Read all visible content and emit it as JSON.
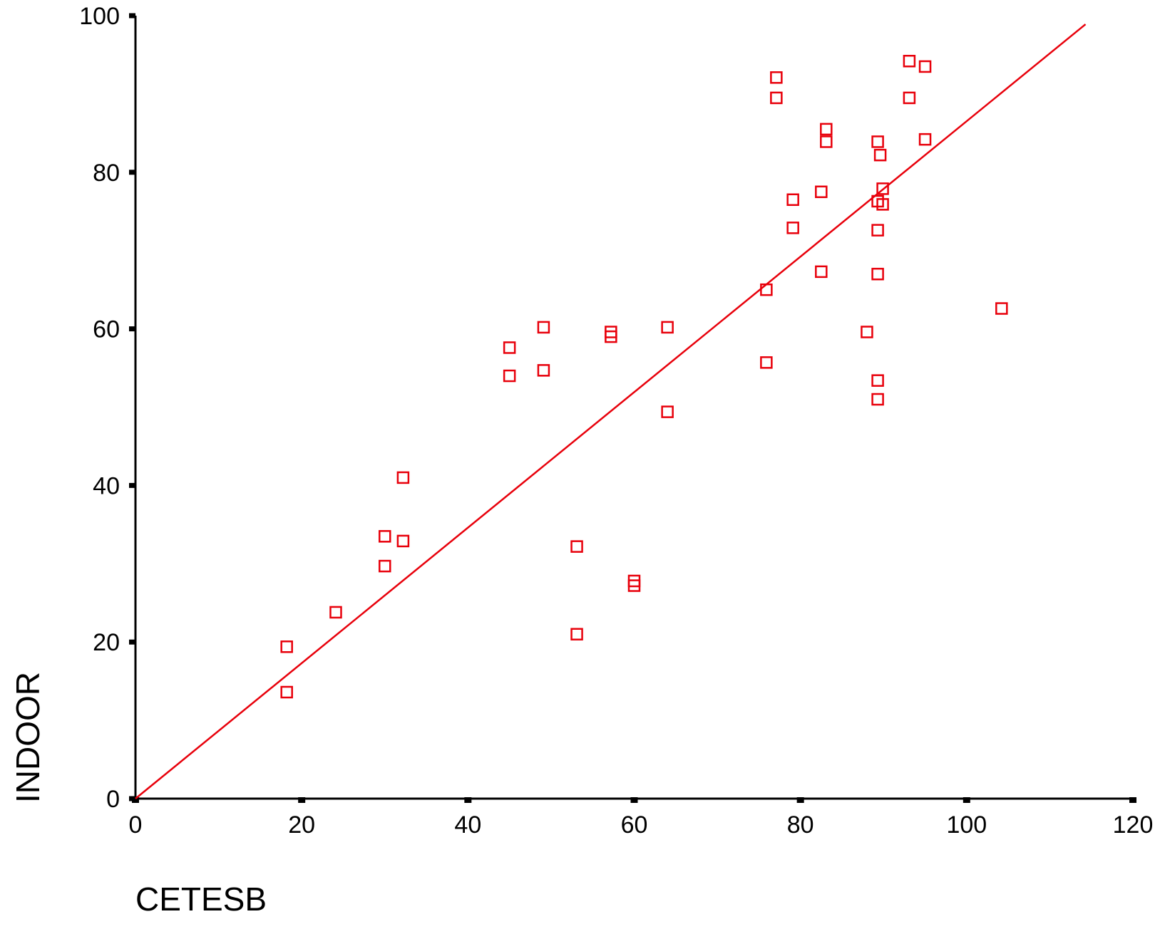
{
  "chart_data": {
    "type": "scatter",
    "title": "",
    "xlabel": "CETESB",
    "ylabel": "INDOOR",
    "xlim": [
      0,
      120
    ],
    "ylim": [
      0,
      100
    ],
    "x_ticks": [
      0,
      20,
      40,
      60,
      80,
      100,
      120
    ],
    "y_ticks": [
      0,
      20,
      40,
      60,
      80,
      100
    ],
    "x_tick_labels": [
      "0",
      "20",
      "40",
      "60",
      "80",
      "100",
      "120"
    ],
    "y_tick_labels": [
      "0",
      "20",
      "40",
      "60",
      "80",
      "100"
    ],
    "grid": false,
    "legend": "none",
    "marker": "open-square",
    "color": "#e8000b",
    "series": [
      {
        "points": [
          [
            18.2,
            19.4
          ],
          [
            18.2,
            13.6
          ],
          [
            24.1,
            23.8
          ],
          [
            30.0,
            33.5
          ],
          [
            30.0,
            29.7
          ],
          [
            32.2,
            41.0
          ],
          [
            32.2,
            32.9
          ],
          [
            45.0,
            57.6
          ],
          [
            45.0,
            54.0
          ],
          [
            49.1,
            60.2
          ],
          [
            49.1,
            54.7
          ],
          [
            53.1,
            32.2
          ],
          [
            53.1,
            21.0
          ],
          [
            57.2,
            59.6
          ],
          [
            57.2,
            59.0
          ],
          [
            60.0,
            27.8
          ],
          [
            60.0,
            27.2
          ],
          [
            64.0,
            60.2
          ],
          [
            64.0,
            49.4
          ],
          [
            75.9,
            65.0
          ],
          [
            75.9,
            55.7
          ],
          [
            77.1,
            92.1
          ],
          [
            77.1,
            89.5
          ],
          [
            79.1,
            76.5
          ],
          [
            79.1,
            72.9
          ],
          [
            82.5,
            77.5
          ],
          [
            82.5,
            67.3
          ],
          [
            83.1,
            85.5
          ],
          [
            83.1,
            83.9
          ],
          [
            88.0,
            59.6
          ],
          [
            89.3,
            83.9
          ],
          [
            89.3,
            76.3
          ],
          [
            89.3,
            72.6
          ],
          [
            89.3,
            67.0
          ],
          [
            89.3,
            53.4
          ],
          [
            89.3,
            51.0
          ],
          [
            89.6,
            82.2
          ],
          [
            89.9,
            77.9
          ],
          [
            89.9,
            75.9
          ],
          [
            93.1,
            94.2
          ],
          [
            93.1,
            89.5
          ],
          [
            95.0,
            93.5
          ],
          [
            95.0,
            84.2
          ],
          [
            104.2,
            62.6
          ]
        ]
      }
    ],
    "fit_line": {
      "x": [
        0,
        114.3
      ],
      "y": [
        0,
        98.9
      ]
    }
  }
}
